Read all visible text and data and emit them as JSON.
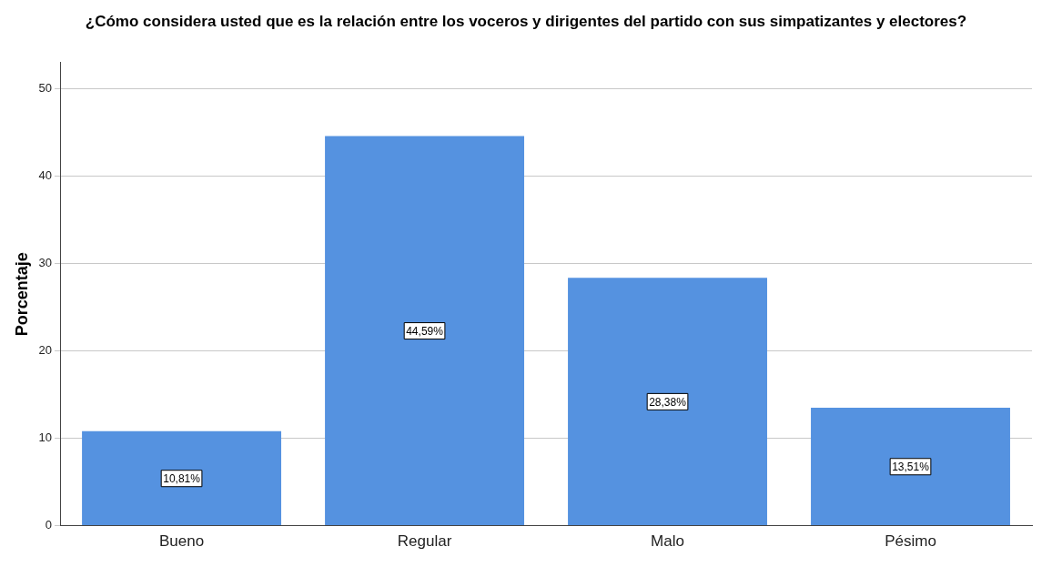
{
  "chart_data": {
    "type": "bar",
    "title": "¿Cómo considera usted que es la relación entre los voceros y dirigentes del partido con sus simpatizantes y electores?",
    "ylabel": "Porcentaje",
    "categories": [
      "Bueno",
      "Regular",
      "Malo",
      "Pésimo"
    ],
    "values": [
      10.81,
      44.59,
      28.38,
      13.51
    ],
    "value_labels": [
      "10,81%",
      "44,59%",
      "28,38%",
      "13,51%"
    ],
    "color": "#5592e0",
    "ylim": [
      0,
      53
    ],
    "yticks": [
      0,
      10,
      20,
      30,
      40,
      50
    ],
    "grid": "y",
    "legend": false
  }
}
